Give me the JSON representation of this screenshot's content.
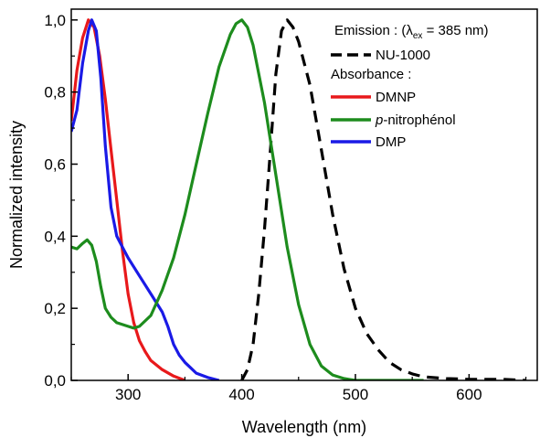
{
  "chart_data": {
    "type": "line",
    "xlabel": "Wavelength (nm)",
    "ylabel": "Normalized intensity",
    "xlim": [
      250,
      660
    ],
    "ylim": [
      0.0,
      1.03
    ],
    "x_ticks": [
      {
        "value": 300,
        "label": "300"
      },
      {
        "value": 400,
        "label": "400"
      },
      {
        "value": 500,
        "label": "500"
      },
      {
        "value": 600,
        "label": "600"
      }
    ],
    "y_ticks": [
      {
        "value": 0.0,
        "label": "0,0"
      },
      {
        "value": 0.2,
        "label": "0,2"
      },
      {
        "value": 0.4,
        "label": "0,4"
      },
      {
        "value": 0.6,
        "label": "0,6"
      },
      {
        "value": 0.8,
        "label": "0,8"
      },
      {
        "value": 1.0,
        "label": "1,0"
      }
    ],
    "legend": {
      "placement": "top-right",
      "emission_header": "Emission :  (λ",
      "emission_header_sub": "ex",
      "emission_header_tail": " = 385 nm)",
      "absorbance_header": "Absorbance :",
      "italic_prefix": "p",
      "italic_rest": "-nitrophénol"
    },
    "series": [
      {
        "name": "NU-1000",
        "color": "#000000",
        "dashed": true,
        "points": [
          [
            400,
            0.0
          ],
          [
            405,
            0.03
          ],
          [
            410,
            0.1
          ],
          [
            415,
            0.24
          ],
          [
            420,
            0.42
          ],
          [
            425,
            0.63
          ],
          [
            430,
            0.85
          ],
          [
            435,
            0.97
          ],
          [
            440,
            1.0
          ],
          [
            445,
            0.98
          ],
          [
            450,
            0.94
          ],
          [
            460,
            0.82
          ],
          [
            470,
            0.64
          ],
          [
            480,
            0.46
          ],
          [
            490,
            0.31
          ],
          [
            500,
            0.2
          ],
          [
            510,
            0.13
          ],
          [
            520,
            0.085
          ],
          [
            530,
            0.05
          ],
          [
            540,
            0.03
          ],
          [
            550,
            0.018
          ],
          [
            560,
            0.01
          ],
          [
            580,
            0.005
          ],
          [
            600,
            0.003
          ],
          [
            620,
            0.003
          ],
          [
            630,
            0.003
          ],
          [
            650,
            0.0
          ]
        ]
      },
      {
        "name": "DMNP",
        "color": "#e8191b",
        "dashed": false,
        "points": [
          [
            250,
            0.72
          ],
          [
            255,
            0.86
          ],
          [
            260,
            0.95
          ],
          [
            265,
            1.0
          ],
          [
            270,
            0.98
          ],
          [
            275,
            0.9
          ],
          [
            280,
            0.78
          ],
          [
            285,
            0.64
          ],
          [
            290,
            0.5
          ],
          [
            295,
            0.36
          ],
          [
            300,
            0.24
          ],
          [
            305,
            0.16
          ],
          [
            310,
            0.11
          ],
          [
            315,
            0.08
          ],
          [
            320,
            0.055
          ],
          [
            330,
            0.03
          ],
          [
            340,
            0.012
          ],
          [
            350,
            0.0
          ]
        ]
      },
      {
        "name": "DMP",
        "color": "#1a1ae6",
        "dashed": false,
        "points": [
          [
            250,
            0.69
          ],
          [
            255,
            0.75
          ],
          [
            260,
            0.88
          ],
          [
            265,
            0.97
          ],
          [
            268,
            1.0
          ],
          [
            272,
            0.97
          ],
          [
            276,
            0.84
          ],
          [
            280,
            0.65
          ],
          [
            285,
            0.48
          ],
          [
            290,
            0.4
          ],
          [
            295,
            0.37
          ],
          [
            300,
            0.34
          ],
          [
            310,
            0.29
          ],
          [
            320,
            0.24
          ],
          [
            330,
            0.19
          ],
          [
            335,
            0.15
          ],
          [
            340,
            0.1
          ],
          [
            345,
            0.07
          ],
          [
            350,
            0.05
          ],
          [
            355,
            0.035
          ],
          [
            360,
            0.02
          ],
          [
            370,
            0.008
          ],
          [
            380,
            0.0
          ]
        ]
      },
      {
        "name": "p-nitrophénol",
        "color": "#1d8c1d",
        "dashed": false,
        "points": [
          [
            250,
            0.37
          ],
          [
            255,
            0.365
          ],
          [
            260,
            0.38
          ],
          [
            264,
            0.39
          ],
          [
            268,
            0.375
          ],
          [
            272,
            0.33
          ],
          [
            276,
            0.26
          ],
          [
            280,
            0.2
          ],
          [
            285,
            0.175
          ],
          [
            290,
            0.16
          ],
          [
            300,
            0.15
          ],
          [
            305,
            0.145
          ],
          [
            310,
            0.15
          ],
          [
            320,
            0.18
          ],
          [
            330,
            0.25
          ],
          [
            340,
            0.34
          ],
          [
            350,
            0.46
          ],
          [
            360,
            0.6
          ],
          [
            370,
            0.74
          ],
          [
            380,
            0.87
          ],
          [
            390,
            0.96
          ],
          [
            395,
            0.99
          ],
          [
            400,
            1.0
          ],
          [
            405,
            0.98
          ],
          [
            410,
            0.93
          ],
          [
            420,
            0.77
          ],
          [
            430,
            0.57
          ],
          [
            440,
            0.37
          ],
          [
            450,
            0.21
          ],
          [
            460,
            0.1
          ],
          [
            470,
            0.04
          ],
          [
            480,
            0.015
          ],
          [
            490,
            0.005
          ],
          [
            500,
            0.0
          ],
          [
            560,
            0.0
          ]
        ]
      }
    ]
  }
}
